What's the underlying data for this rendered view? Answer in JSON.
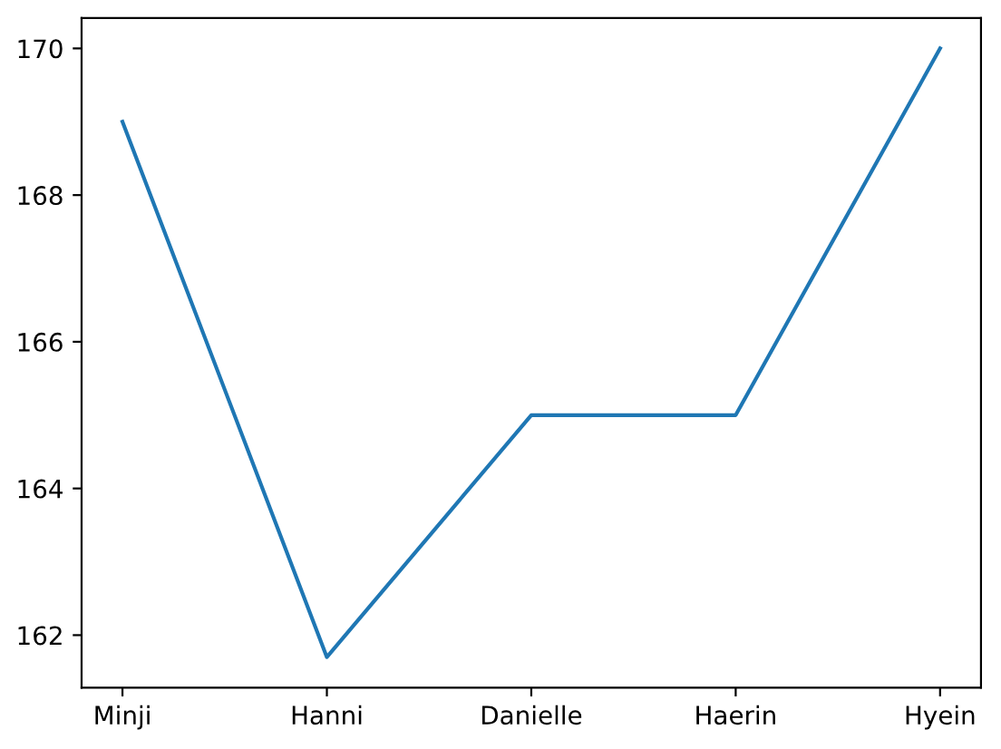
{
  "chart_data": {
    "type": "line",
    "categories": [
      "Minji",
      "Hanni",
      "Danielle",
      "Haerin",
      "Hyein"
    ],
    "series": [
      {
        "color": "#1f77b4",
        "values": [
          169,
          161.7,
          165,
          165,
          170
        ]
      }
    ],
    "ylim": [
      161.285,
      170.415
    ],
    "yticks": [
      162,
      164,
      166,
      168,
      170
    ],
    "grid": false,
    "marker": "none",
    "line_style": "solid"
  }
}
